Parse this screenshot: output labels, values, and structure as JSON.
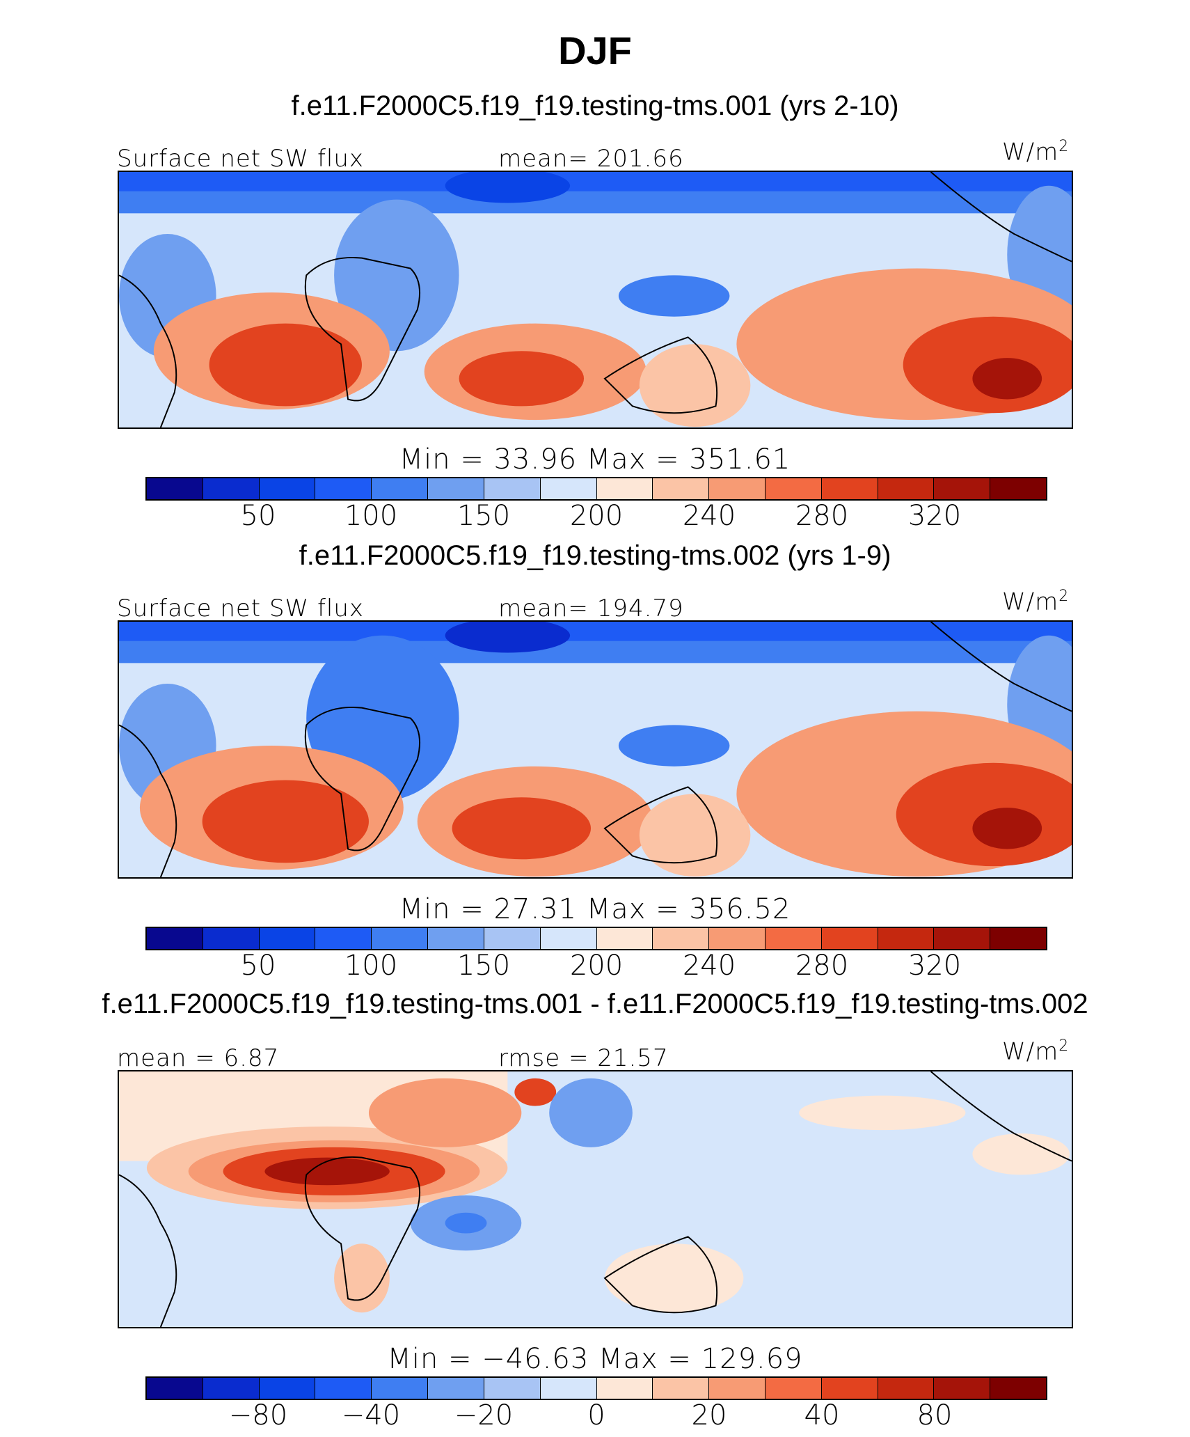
{
  "figure": {
    "title": "DJF",
    "units_base": "W/m",
    "units_exp": "2"
  },
  "palette": {
    "colors": [
      "#08088f",
      "#0a2ccf",
      "#0a44e6",
      "#1e5bf5",
      "#3f7ef2",
      "#6f9ff0",
      "#a8c4f4",
      "#d6e6fb",
      "#fde7d7",
      "#fbc4a6",
      "#f79b74",
      "#f36b43",
      "#e2431f",
      "#c5280f",
      "#a51409",
      "#7d0000"
    ]
  },
  "panels": [
    {
      "case_title": "f.e11.F2000C5.f19_f19.testing-tms.001 (yrs 2-10)",
      "left_label": "Surface net SW flux",
      "center_label": "mean=  201.66",
      "minmax": "Min =   33.96  Max  =  351.61",
      "tick_labels": [
        "50",
        "100",
        "150",
        "200",
        "240",
        "280",
        "320"
      ]
    },
    {
      "case_title": "f.e11.F2000C5.f19_f19.testing-tms.002 (yrs 1-9)",
      "left_label": "Surface net SW flux",
      "center_label": "mean=  194.79",
      "minmax": "Min =   27.31  Max  =  356.52",
      "tick_labels": [
        "50",
        "100",
        "150",
        "200",
        "240",
        "280",
        "320"
      ]
    },
    {
      "case_title": "f.e11.F2000C5.f19_f19.testing-tms.001 - f.e11.F2000C5.f19_f19.testing-tms.002",
      "left_label": "mean =    6.87",
      "center_label": "rmse =   21.57",
      "minmax": "Min  =  −46.63  Max  =  129.69",
      "tick_labels": [
        "−80",
        "−40",
        "−20",
        "0",
        "20",
        "40",
        "80"
      ]
    }
  ]
}
